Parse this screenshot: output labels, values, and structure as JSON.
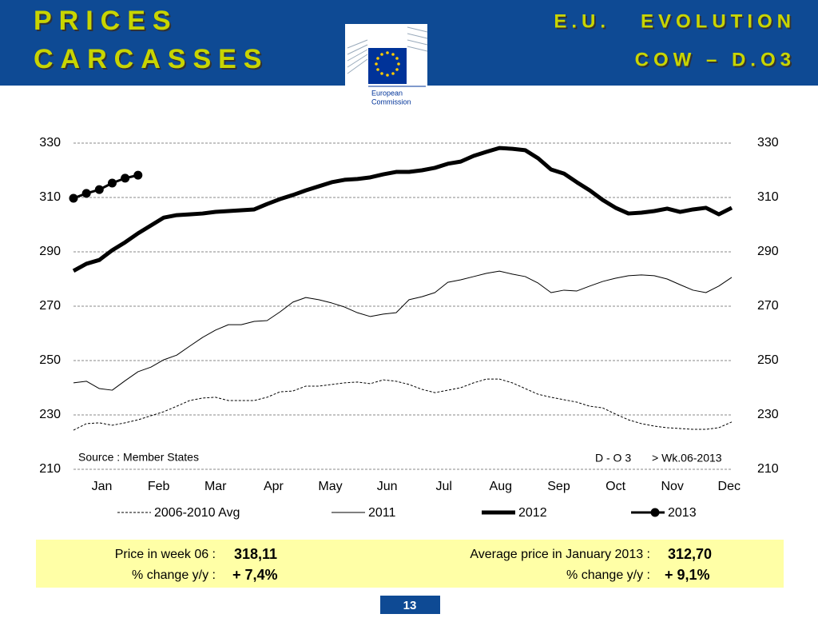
{
  "header": {
    "title_lines": [
      "PRICES",
      "CARCASSES"
    ],
    "right_lines": [
      "E.U.   EVOLUTION",
      "COW – D.O3"
    ],
    "logo_text": [
      "European",
      "Commission"
    ]
  },
  "chart_data": {
    "type": "line",
    "x": [
      1,
      2,
      3,
      4,
      5,
      6,
      7,
      8,
      9,
      10,
      11,
      12,
      13,
      14,
      15,
      16,
      17,
      18,
      19,
      20,
      21,
      22,
      23,
      24,
      25,
      26,
      27,
      28,
      29,
      30,
      31,
      32,
      33,
      34,
      35,
      36,
      37,
      38,
      39,
      40,
      41,
      42,
      43,
      44,
      45,
      46,
      47,
      48,
      49,
      50,
      51,
      52
    ],
    "xlim": [
      1,
      52
    ],
    "xticks": [
      {
        "value": 3.2,
        "label": "Jan"
      },
      {
        "value": 7.6,
        "label": "Feb"
      },
      {
        "value": 12.0,
        "label": "Mar"
      },
      {
        "value": 16.5,
        "label": "Apr"
      },
      {
        "value": 20.9,
        "label": "May"
      },
      {
        "value": 25.3,
        "label": "Jun"
      },
      {
        "value": 29.7,
        "label": "Jul"
      },
      {
        "value": 34.1,
        "label": "Aug"
      },
      {
        "value": 38.6,
        "label": "Sep"
      },
      {
        "value": 43.0,
        "label": "Oct"
      },
      {
        "value": 47.4,
        "label": "Nov"
      },
      {
        "value": 51.8,
        "label": "Dec"
      }
    ],
    "ylim": [
      210,
      330
    ],
    "yticks": [
      210,
      230,
      250,
      270,
      290,
      310,
      330
    ],
    "y2lim": [
      210,
      330
    ],
    "y2ticks": [
      210,
      230,
      250,
      270,
      290,
      310,
      330
    ],
    "grid": true,
    "series": [
      {
        "name": "2006-2010 Avg",
        "color": "#000000",
        "style": "dash",
        "width": 1,
        "values": [
          224.4,
          226.8,
          227.1,
          226.2,
          227.1,
          228.2,
          229.7,
          231.2,
          233.2,
          235.3,
          236.2,
          236.5,
          235.3,
          235.3,
          235.3,
          236.5,
          238.5,
          238.8,
          240.6,
          240.6,
          241.2,
          241.8,
          242.1,
          241.5,
          242.9,
          242.4,
          241.2,
          239.4,
          238.2,
          239.1,
          240.0,
          241.8,
          243.2,
          243.2,
          241.8,
          239.7,
          237.6,
          236.5,
          235.6,
          234.7,
          233.2,
          232.6,
          230.3,
          228.2,
          226.8,
          225.9,
          225.3,
          225.0,
          224.7,
          224.7,
          225.3,
          227.4
        ]
      },
      {
        "name": "2011",
        "color": "#000000",
        "style": "solid",
        "width": 1,
        "values": [
          241.8,
          242.4,
          239.7,
          239.1,
          242.6,
          245.9,
          247.6,
          250.3,
          252.0,
          255.3,
          258.5,
          261.2,
          263.2,
          263.2,
          264.4,
          264.7,
          267.9,
          271.5,
          273.2,
          272.4,
          271.2,
          269.7,
          267.6,
          266.2,
          267.1,
          267.6,
          272.4,
          273.5,
          275.0,
          278.8,
          279.7,
          280.9,
          282.1,
          282.9,
          281.8,
          280.9,
          278.5,
          275.0,
          275.9,
          275.6,
          277.4,
          279.1,
          280.3,
          281.2,
          281.5,
          281.2,
          280.0,
          277.9,
          275.9,
          275.0,
          277.4,
          280.6
        ]
      },
      {
        "name": "2012",
        "color": "#000000",
        "style": "solid",
        "width": 5,
        "values": [
          283.0,
          285.6,
          287.0,
          290.6,
          293.5,
          296.8,
          299.7,
          302.6,
          303.5,
          303.8,
          304.1,
          304.7,
          305.0,
          305.3,
          305.6,
          307.6,
          309.4,
          310.9,
          312.6,
          314.1,
          315.6,
          316.5,
          316.8,
          317.4,
          318.5,
          319.4,
          319.4,
          320.0,
          320.9,
          322.4,
          323.2,
          325.3,
          326.8,
          328.2,
          327.9,
          327.4,
          324.4,
          320.3,
          318.8,
          315.6,
          312.6,
          309.1,
          306.2,
          304.1,
          304.4,
          305.0,
          305.9,
          304.7,
          305.6,
          306.2,
          303.8,
          306.2
        ]
      },
      {
        "name": "2013",
        "color": "#000000",
        "style": "solid",
        "width": 3,
        "marker": "circle",
        "values": [
          309.7,
          311.5,
          312.9,
          315.3,
          317.1,
          318.2,
          null,
          null,
          null,
          null,
          null,
          null,
          null,
          null,
          null,
          null,
          null,
          null,
          null,
          null,
          null,
          null,
          null,
          null,
          null,
          null,
          null,
          null,
          null,
          null,
          null,
          null,
          null,
          null,
          null,
          null,
          null,
          null,
          null,
          null,
          null,
          null,
          null,
          null,
          null,
          null,
          null,
          null,
          null,
          null,
          null,
          null
        ]
      }
    ],
    "annotations": [
      "Source : Member States",
      "D - O 3",
      "> Wk.06-2013"
    ]
  },
  "summary": {
    "left": [
      [
        "Price in week 06 :",
        "318,11"
      ],
      [
        "% change y/y :",
        "+ 7,4%"
      ]
    ],
    "right": [
      [
        "Average price in January 2013 :",
        "312,70"
      ],
      [
        "% change y/y :",
        "+ 9,1%"
      ]
    ]
  },
  "page_number": "13"
}
